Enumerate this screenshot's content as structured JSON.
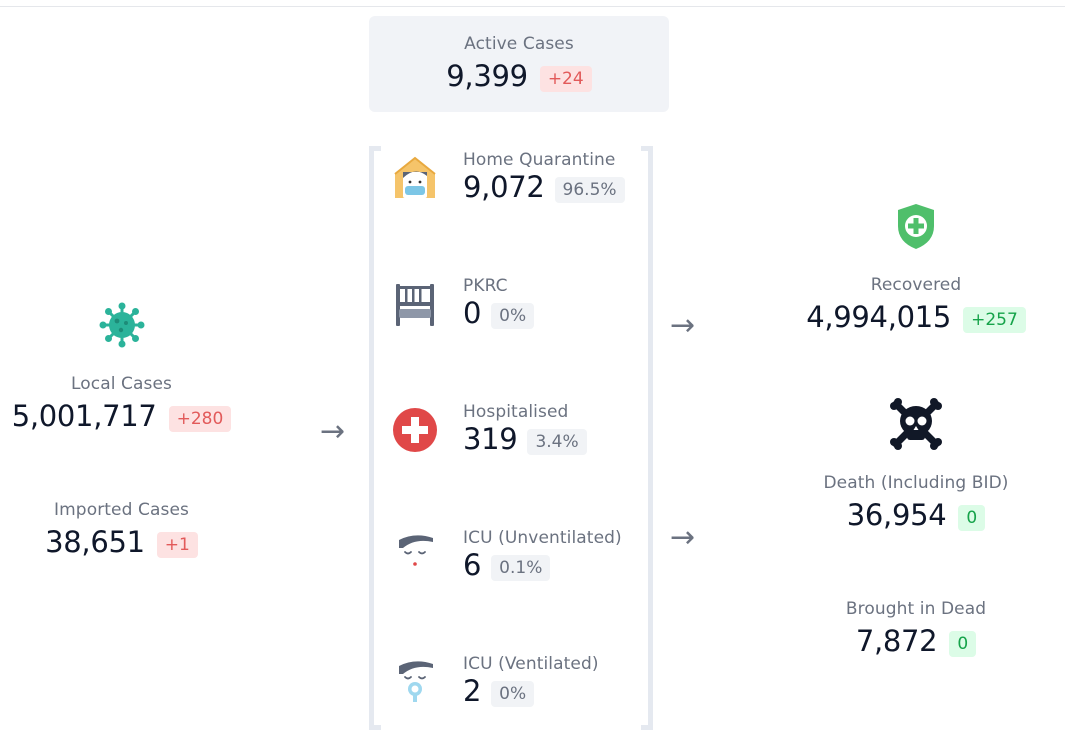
{
  "active": {
    "label": "Active Cases",
    "value": "9,399",
    "change": "+24"
  },
  "left": {
    "virus_icon": "virus-icon",
    "local": {
      "label": "Local Cases",
      "value": "5,001,717",
      "change": "+280"
    },
    "imported": {
      "label": "Imported Cases",
      "value": "38,651",
      "change": "+1"
    }
  },
  "statuses": [
    {
      "icon": "home-quarantine-icon",
      "label": "Home Quarantine",
      "value": "9,072",
      "percent": "96.5%"
    },
    {
      "icon": "bed-icon",
      "label": "PKRC",
      "value": "0",
      "percent": "0%"
    },
    {
      "icon": "medical-cross-icon",
      "label": "Hospitalised",
      "value": "319",
      "percent": "3.4%"
    },
    {
      "icon": "sleeping-face-icon",
      "label": "ICU (Unventilated)",
      "value": "6",
      "percent": "0.1%"
    },
    {
      "icon": "ventilated-face-icon",
      "label": "ICU (Ventilated)",
      "value": "2",
      "percent": "0%"
    }
  ],
  "right": {
    "recovered": {
      "icon": "shield-plus-icon",
      "label": "Recovered",
      "value": "4,994,015",
      "change": "+257"
    },
    "death": {
      "icon": "skull-crossbones-icon",
      "label": "Death (Including BID)",
      "value": "36,954",
      "change": "0"
    },
    "bid": {
      "label": "Brought in Dead",
      "value": "7,872",
      "change": "0"
    }
  },
  "arrows": {
    "glyph": "→"
  },
  "colors": {
    "red_badge_bg": "#fde2e2",
    "red_badge_text": "#e25a5a",
    "green_badge_bg": "#dcfce7",
    "green_badge_text": "#16a34a",
    "gray_badge_bg": "#f1f3f6",
    "virus": "#2bb39a",
    "shield": "#4fbf6b",
    "cross": "#e04848"
  }
}
